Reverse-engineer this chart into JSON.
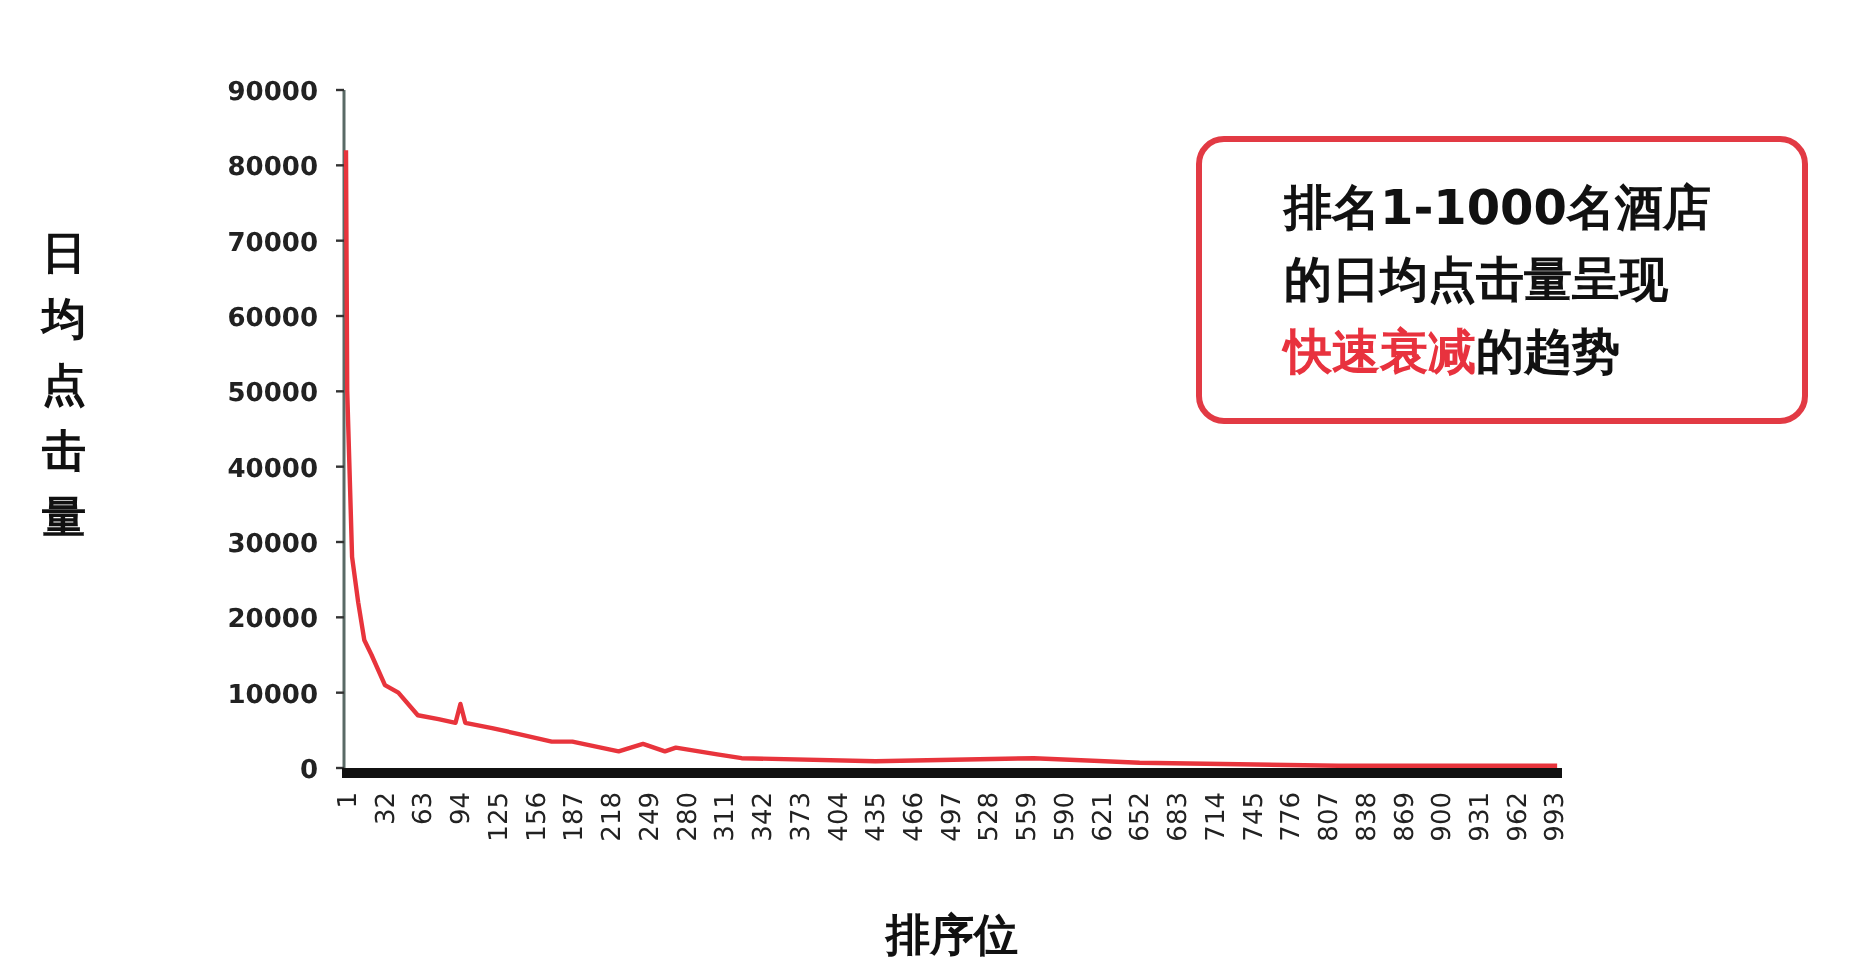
{
  "chart_data": {
    "type": "line",
    "xlabel": "排序位",
    "ylabel": "日均点击量",
    "x": [
      1,
      2,
      4,
      6,
      11,
      16,
      22,
      33,
      44,
      60,
      77,
      91,
      95,
      99,
      121,
      143,
      170,
      187,
      225,
      245,
      263,
      272,
      306,
      326,
      436,
      566,
      653,
      816,
      996
    ],
    "series": [
      {
        "color": "#e8343c",
        "values": [
          82000,
          50000,
          39000,
          28000,
          22000,
          17000,
          15000,
          11000,
          10000,
          7000,
          6500,
          6000,
          8500,
          6000,
          5300,
          4500,
          3500,
          3500,
          2200,
          3200,
          2200,
          2700,
          1800,
          1300,
          900,
          1300,
          700,
          300,
          300
        ]
      }
    ],
    "xlim": [
      1,
      1000
    ],
    "xticks": [
      1,
      32,
      63,
      94,
      125,
      156,
      187,
      218,
      249,
      280,
      311,
      342,
      373,
      404,
      435,
      466,
      497,
      528,
      559,
      590,
      621,
      652,
      683,
      714,
      745,
      776,
      807,
      838,
      869,
      900,
      931,
      962,
      993
    ],
    "ylim": [
      0,
      90000
    ],
    "yticks": [
      0,
      10000,
      20000,
      30000,
      40000,
      50000,
      60000,
      70000,
      80000,
      90000
    ],
    "grid": false,
    "marker": "none",
    "line_style": "solid",
    "annotations": [
      "排名1-1000名酒店的日均点击量呈现",
      "快速衰减",
      "的趋势"
    ]
  }
}
